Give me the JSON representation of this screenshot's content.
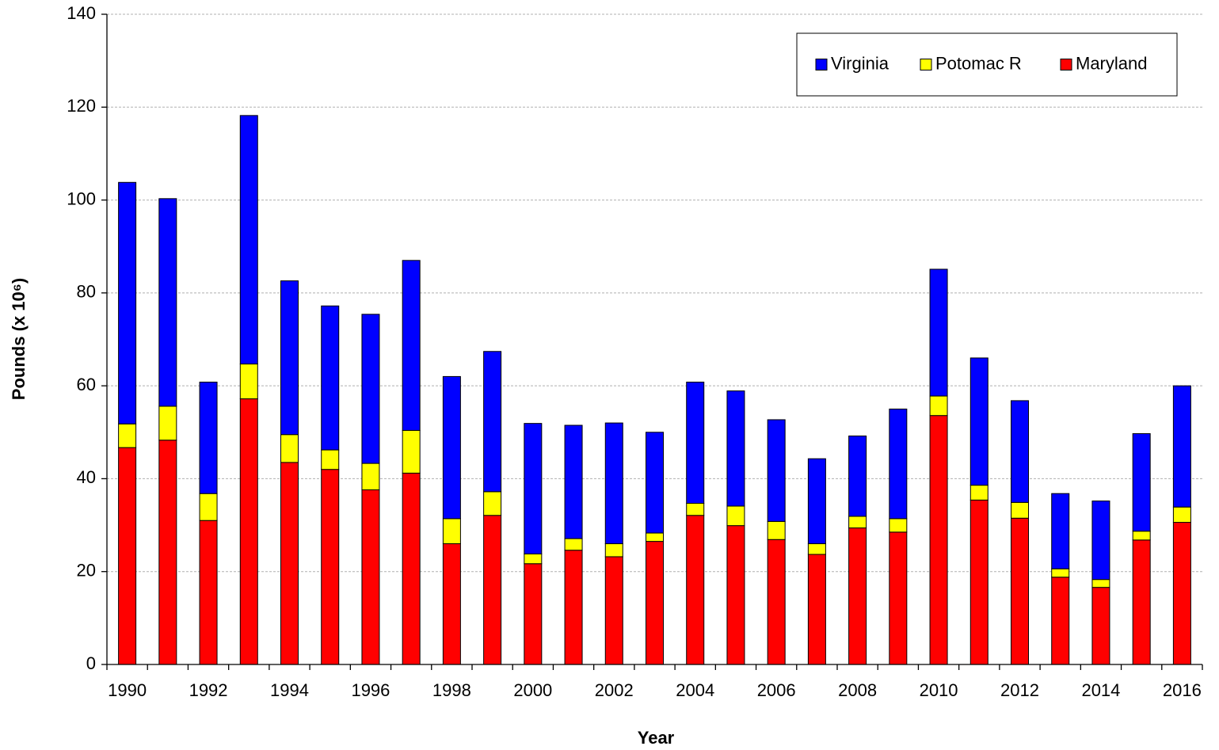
{
  "chart_data": {
    "type": "stacked_bar",
    "x_label": "Year",
    "y_label": "Pounds (x 10⁶)",
    "categories": [
      "1990",
      null,
      "1992",
      null,
      "1994",
      null,
      "1996",
      null,
      "1998",
      null,
      "2000",
      null,
      "2002",
      null,
      "2004",
      null,
      "2006",
      null,
      "2008",
      null,
      "2010",
      null,
      "2012",
      null,
      "2014",
      null,
      "2016"
    ],
    "series": [
      {
        "name": "Virginia",
        "color": "#0000ff",
        "values": [
          52.0,
          44.7,
          24.0,
          53.5,
          33.1,
          31.0,
          32.1,
          36.6,
          30.6,
          30.2,
          28.1,
          24.4,
          26.0,
          21.7,
          26.1,
          24.8,
          21.9,
          18.3,
          17.3,
          23.6,
          27.3,
          27.4,
          21.9,
          16.2,
          16.9,
          21.0,
          26.1
        ]
      },
      {
        "name": "Potomac R",
        "color": "#ffff00",
        "values": [
          5.1,
          7.3,
          5.8,
          7.5,
          6.0,
          4.2,
          5.7,
          9.2,
          5.4,
          5.1,
          2.1,
          2.5,
          2.8,
          1.8,
          2.6,
          4.2,
          3.9,
          2.3,
          2.5,
          2.9,
          4.2,
          3.2,
          3.4,
          1.8,
          1.7,
          1.9,
          3.3
        ]
      },
      {
        "name": "Maryland",
        "color": "#ff0000",
        "values": [
          46.7,
          48.3,
          31.0,
          57.2,
          43.5,
          42.0,
          37.6,
          41.2,
          26.0,
          32.1,
          21.7,
          24.6,
          23.2,
          26.5,
          32.1,
          29.9,
          26.9,
          23.7,
          29.4,
          28.5,
          53.6,
          35.4,
          31.5,
          18.8,
          16.6,
          26.8,
          30.6
        ]
      }
    ],
    "ylim": [
      0,
      140
    ],
    "yticks": [
      0,
      20,
      40,
      60,
      80,
      100,
      120,
      140
    ],
    "grid": true,
    "legend": "upper right"
  }
}
